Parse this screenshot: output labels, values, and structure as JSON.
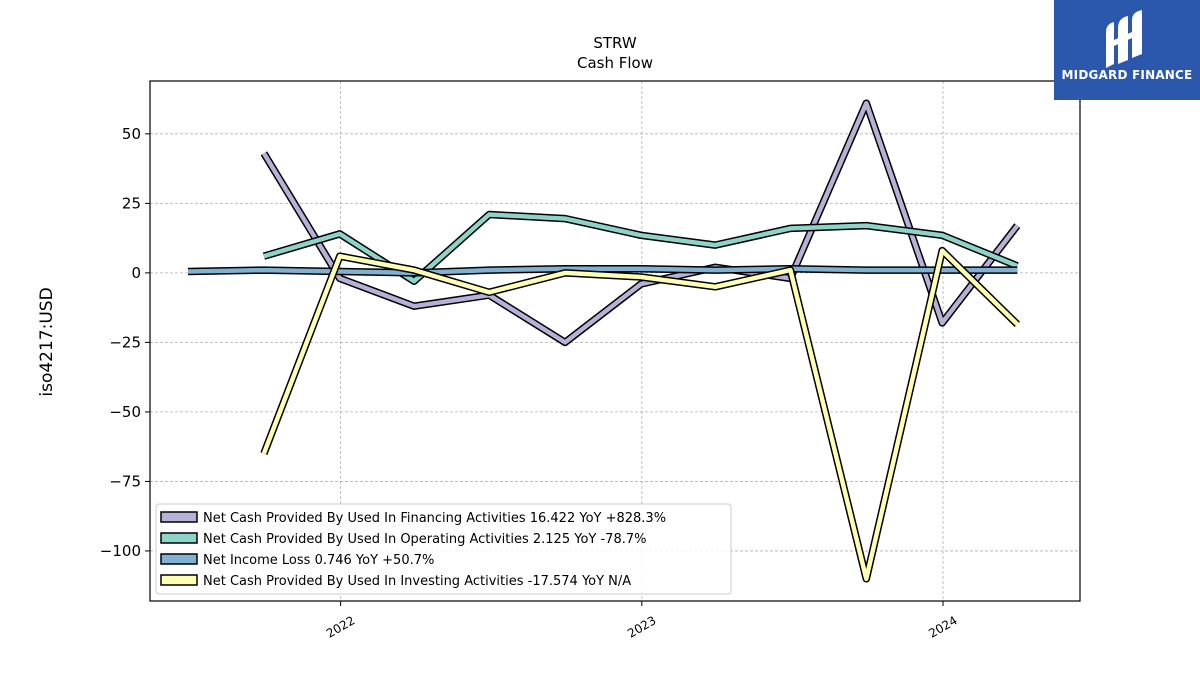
{
  "chart_data": {
    "type": "line",
    "title": "STRW",
    "subtitle": "Cash Flow",
    "xlabel": "",
    "ylabel": "iso4217:USD",
    "x_ticks": [
      "2022",
      "2023",
      "2024"
    ],
    "y_ticks": [
      50,
      25,
      0,
      -25,
      -50,
      -75,
      -100
    ],
    "y_tick_labels": [
      "50",
      "25",
      "0",
      "−25",
      "−50",
      "−75",
      "−100"
    ],
    "ylim": [
      -118,
      69
    ],
    "xlim": [
      "2021-05-15",
      "2024-06-15"
    ],
    "grid": true,
    "legend_position": "lower-left",
    "series": [
      {
        "name": "Net Cash Provided By Used In Financing Activities",
        "legend_label": "Net Cash Provided By Used In Financing Activities  16.422 YoY +828.3%",
        "color": "#b6b1d6",
        "points": [
          {
            "x": "2021-09-30",
            "y": 43
          },
          {
            "x": "2021-12-31",
            "y": -2
          },
          {
            "x": "2022-03-31",
            "y": -12
          },
          {
            "x": "2022-06-30",
            "y": -8
          },
          {
            "x": "2022-09-30",
            "y": -25
          },
          {
            "x": "2022-12-31",
            "y": -4
          },
          {
            "x": "2023-03-31",
            "y": 2
          },
          {
            "x": "2023-06-30",
            "y": -2
          },
          {
            "x": "2023-09-30",
            "y": 61
          },
          {
            "x": "2023-12-31",
            "y": -18
          },
          {
            "x": "2024-03-31",
            "y": 17
          }
        ]
      },
      {
        "name": "Net Cash Provided By Used In Operating Activities",
        "legend_label": "Net Cash Provided By Used In Operating Activities  2.125 YoY -78.7%",
        "color": "#8dd3c7",
        "points": [
          {
            "x": "2021-09-30",
            "y": 6
          },
          {
            "x": "2021-12-31",
            "y": 14
          },
          {
            "x": "2022-03-31",
            "y": -3
          },
          {
            "x": "2022-06-30",
            "y": 21
          },
          {
            "x": "2022-09-30",
            "y": 19.5
          },
          {
            "x": "2022-12-31",
            "y": 13.5
          },
          {
            "x": "2023-03-31",
            "y": 10
          },
          {
            "x": "2023-06-30",
            "y": 16
          },
          {
            "x": "2023-09-30",
            "y": 17
          },
          {
            "x": "2023-12-31",
            "y": 13.5
          },
          {
            "x": "2024-03-31",
            "y": 2.5
          }
        ]
      },
      {
        "name": "Net Income Loss",
        "legend_label": "Net Income Loss  0.746 YoY +50.7%",
        "color": "#80b1d3",
        "points": [
          {
            "x": "2021-06-30",
            "y": 0.5
          },
          {
            "x": "2021-09-30",
            "y": 1
          },
          {
            "x": "2021-12-31",
            "y": 0.5
          },
          {
            "x": "2022-03-31",
            "y": 0
          },
          {
            "x": "2022-06-30",
            "y": 1
          },
          {
            "x": "2022-09-30",
            "y": 1.5
          },
          {
            "x": "2022-12-31",
            "y": 1.5
          },
          {
            "x": "2023-03-31",
            "y": 1
          },
          {
            "x": "2023-06-30",
            "y": 1.5
          },
          {
            "x": "2023-09-30",
            "y": 1
          },
          {
            "x": "2023-12-31",
            "y": 1
          },
          {
            "x": "2024-03-31",
            "y": 1
          }
        ]
      },
      {
        "name": "Net Cash Provided By Used In Investing Activities",
        "legend_label": "Net Cash Provided By Used In Investing Activities  -17.574 YoY N/A",
        "color": "#ffffb3",
        "points": [
          {
            "x": "2021-09-30",
            "y": -65
          },
          {
            "x": "2021-12-31",
            "y": 6
          },
          {
            "x": "2022-03-31",
            "y": 1
          },
          {
            "x": "2022-06-30",
            "y": -7
          },
          {
            "x": "2022-09-30",
            "y": 0
          },
          {
            "x": "2022-12-31",
            "y": -1.5
          },
          {
            "x": "2023-03-31",
            "y": -5
          },
          {
            "x": "2023-06-30",
            "y": 1
          },
          {
            "x": "2023-09-30",
            "y": -110
          },
          {
            "x": "2023-12-31",
            "y": 8
          },
          {
            "x": "2024-03-31",
            "y": -18.5
          }
        ]
      }
    ]
  },
  "logo": {
    "text": "MIDGARD FINANCE",
    "background": "#2b57ad"
  }
}
